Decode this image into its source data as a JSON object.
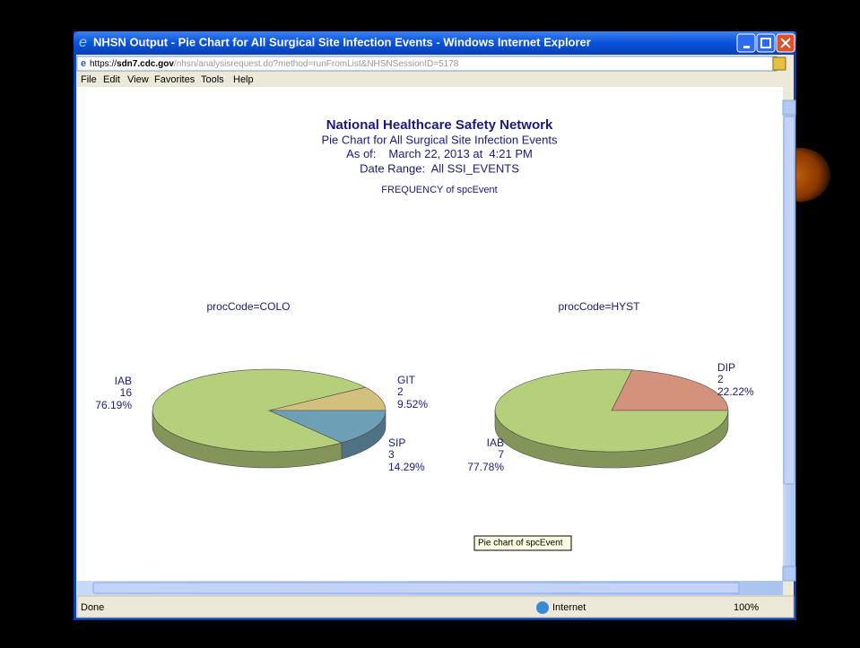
{
  "window": {
    "title": "NHSN Output - Pie Chart for All Surgical Site Infection Events - Windows Internet Explorer",
    "url_scheme": "https://",
    "url_host": "sdn7.cdc.gov",
    "url_path": "/nhsn/analysisrequest.do?method=runFromList&NHSNSessionID=5178"
  },
  "menu": [
    "File",
    "Edit",
    "View",
    "Favorites",
    "Tools",
    "Help"
  ],
  "report": {
    "title": "National Healthcare Safety Network",
    "subtitle": "Pie Chart for All Surgical Site Infection Events",
    "as_of_label": "As of:",
    "as_of": "March 22, 2013 at  4:21 PM",
    "date_range": "Date Range:  All SSI_EVENTS",
    "statistic": "FREQUENCY of spcEvent"
  },
  "chart_data": [
    {
      "type": "pie",
      "title": "procCode=COLO",
      "categories": [
        "GIT",
        "IAB",
        "SIP"
      ],
      "counts": [
        2,
        16,
        3
      ],
      "values": [
        9.52,
        76.19,
        14.29
      ],
      "value_labels": [
        "9.52%",
        "76.19%",
        "14.29%"
      ],
      "colors": [
        "#d3c07f",
        "#b6cf7b",
        "#6d9fb6"
      ]
    },
    {
      "type": "pie",
      "title": "procCode=HYST",
      "categories": [
        "DIP",
        "IAB"
      ],
      "counts": [
        2,
        7
      ],
      "values": [
        22.22,
        77.78
      ],
      "value_labels": [
        "22.22%",
        "77.78%"
      ],
      "colors": [
        "#d4917b",
        "#b6cf7b"
      ]
    }
  ],
  "tooltip": "Pie chart of spcEvent",
  "status": {
    "text": "Done",
    "zone": "Internet",
    "zoom": "100%"
  }
}
